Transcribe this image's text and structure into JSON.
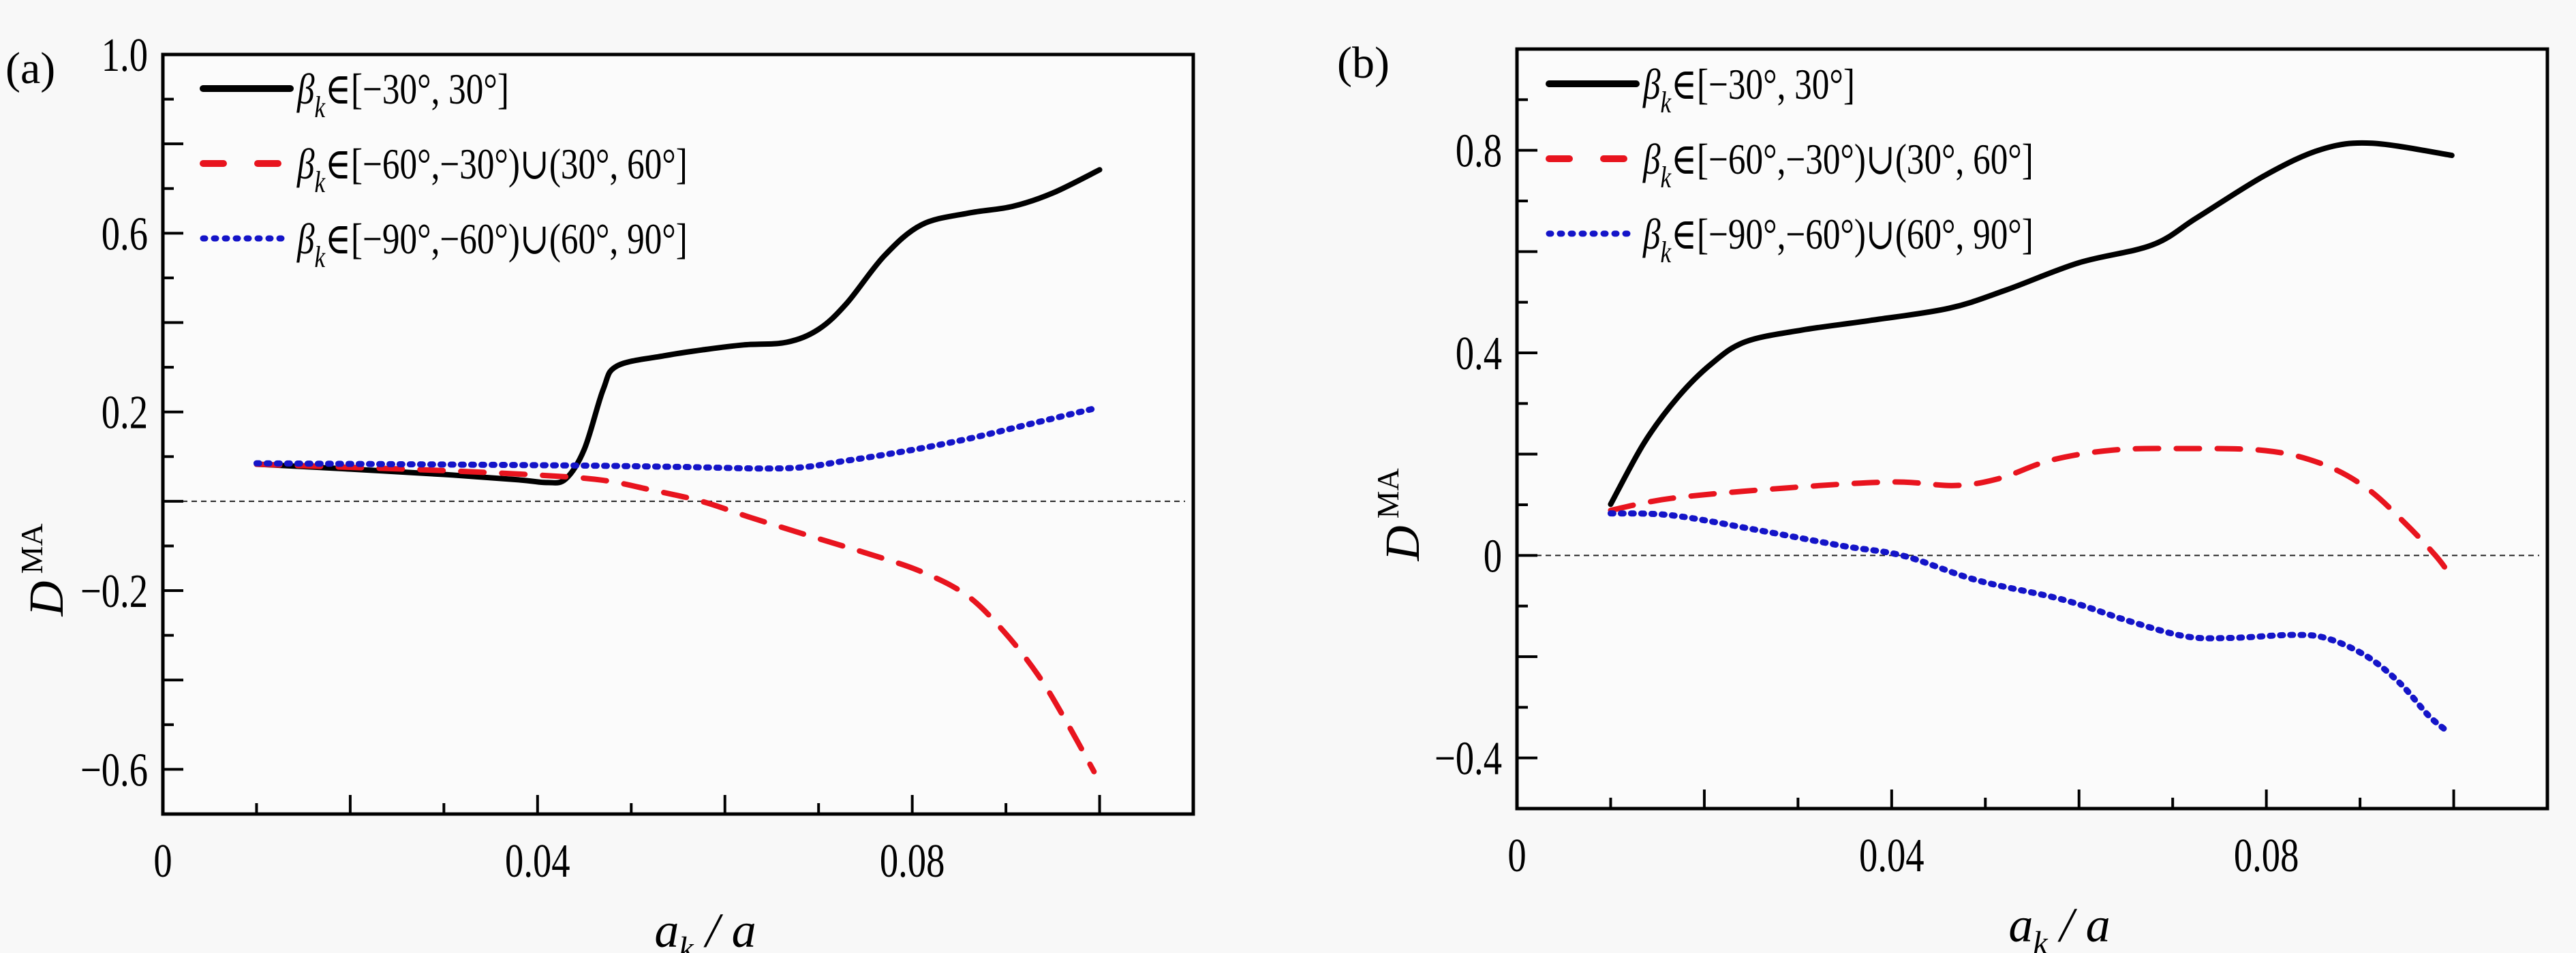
{
  "figure": {
    "panels": [
      "(a)",
      "(b)"
    ]
  },
  "chart_data": [
    {
      "panel": "(a)",
      "type": "line",
      "xlabel": {
        "main": "a",
        "sub": "k",
        "suffix": " / a"
      },
      "ylabel": {
        "main": "D",
        "sup": "MA"
      },
      "xlim": [
        0,
        0.11
      ],
      "ylim": [
        -0.7,
        1.0
      ],
      "xticks": [
        0,
        0.04,
        0.08
      ],
      "xtick_labels": [
        "0",
        "0.04",
        "0.08"
      ],
      "xminor_step": 0.01,
      "yticks": [
        1.0,
        0.6,
        0.2,
        -0.2,
        -0.6
      ],
      "ytick_labels": [
        "1.0",
        "0.6",
        "0.2",
        "-0.2",
        "-0.6"
      ],
      "yminor_step": 0.1,
      "reference_line_y": 0,
      "grid": false,
      "legend_position": "top-left",
      "series": [
        {
          "name": "β_k∈[−30°, 30°]",
          "color": "#000000",
          "style": "solid",
          "x": [
            0.01,
            0.02,
            0.03,
            0.038,
            0.041,
            0.043,
            0.045,
            0.047,
            0.0485,
            0.0536,
            0.058,
            0.062,
            0.0666,
            0.07,
            0.073,
            0.077,
            0.081,
            0.086,
            0.0907,
            0.095,
            0.1
          ],
          "y": [
            0.083,
            0.072,
            0.06,
            0.048,
            0.042,
            0.05,
            0.117,
            0.25,
            0.303,
            0.326,
            0.34,
            0.35,
            0.356,
            0.385,
            0.443,
            0.549,
            0.619,
            0.645,
            0.66,
            0.69,
            0.742
          ]
        },
        {
          "name": "β_k∈[−60°,−30°)∪(30°, 60°]",
          "color": "#e8141e",
          "style": "dashed",
          "x": [
            0.01,
            0.02,
            0.0296,
            0.0406,
            0.047,
            0.052,
            0.0575,
            0.0627,
            0.0699,
            0.0754,
            0.0808,
            0.0858,
            0.0898,
            0.0935,
            0.0965,
            0.0994
          ],
          "y": [
            0.083,
            0.076,
            0.069,
            0.058,
            0.047,
            0.026,
            0.0,
            -0.036,
            -0.083,
            -0.118,
            -0.156,
            -0.21,
            -0.292,
            -0.391,
            -0.495,
            -0.605
          ]
        },
        {
          "name": "β_k∈[−90°,−60°)∪(60°, 90°]",
          "color": "#1414c8",
          "style": "dotted",
          "x": [
            0.01,
            0.025,
            0.0445,
            0.055,
            0.0666,
            0.073,
            0.08,
            0.086,
            0.092,
            0.0993
          ],
          "y": [
            0.085,
            0.083,
            0.08,
            0.077,
            0.074,
            0.091,
            0.115,
            0.14,
            0.17,
            0.207
          ]
        }
      ]
    },
    {
      "panel": "(b)",
      "type": "line",
      "xlabel": {
        "main": "a",
        "sub": "k",
        "suffix": " / a"
      },
      "ylabel": {
        "main": "D",
        "sup": "MA"
      },
      "xlim": [
        0,
        0.11
      ],
      "ylim": [
        -0.5,
        1.0
      ],
      "xticks": [
        0,
        0.04,
        0.08
      ],
      "xtick_labels": [
        "0",
        "0.04",
        "0.08"
      ],
      "xminor_step": 0.01,
      "yticks": [
        0.8,
        0.4,
        0,
        -0.4
      ],
      "ytick_labels": [
        "0.8",
        "0.4",
        "0",
        "-0.4"
      ],
      "yminor_step": 0.1,
      "reference_line_y": 0,
      "grid": false,
      "legend_position": "top-left",
      "series": [
        {
          "name": "β_k∈[−30°, 30°]",
          "color": "#000000",
          "style": "solid",
          "x": [
            0.01,
            0.0136,
            0.0172,
            0.0208,
            0.0244,
            0.0304,
            0.0377,
            0.0461,
            0.0522,
            0.06,
            0.0678,
            0.0726,
            0.0799,
            0.0859,
            0.0913,
            0.0998
          ],
          "y": [
            0.101,
            0.223,
            0.313,
            0.379,
            0.422,
            0.445,
            0.464,
            0.488,
            0.524,
            0.578,
            0.613,
            0.667,
            0.751,
            0.802,
            0.814,
            0.79
          ]
        },
        {
          "name": "β_k∈[−60°,−30°)∪(30°, 60°]",
          "color": "#e8141e",
          "style": "dashed",
          "x": [
            0.01,
            0.0166,
            0.0286,
            0.04,
            0.0467,
            0.0515,
            0.057,
            0.0636,
            0.0708,
            0.0799,
            0.0859,
            0.0907,
            0.0949,
            0.098,
            0.0995
          ],
          "y": [
            0.089,
            0.113,
            0.133,
            0.145,
            0.138,
            0.152,
            0.188,
            0.208,
            0.211,
            0.207,
            0.181,
            0.133,
            0.062,
            0.001,
            -0.035
          ]
        },
        {
          "name": "β_k∈[−90°,−60°)∪(60°, 90°]",
          "color": "#1414c8",
          "style": "dotted",
          "x": [
            0.01,
            0.0166,
            0.0257,
            0.0347,
            0.0413,
            0.0491,
            0.0582,
            0.0654,
            0.0714,
            0.0762,
            0.0829,
            0.0865,
            0.0907,
            0.0943,
            0.0973,
            0.0993
          ],
          "y": [
            0.083,
            0.079,
            0.05,
            0.019,
            -0.001,
            -0.049,
            -0.087,
            -0.13,
            -0.16,
            -0.163,
            -0.157,
            -0.164,
            -0.199,
            -0.253,
            -0.316,
            -0.347
          ]
        }
      ]
    }
  ]
}
